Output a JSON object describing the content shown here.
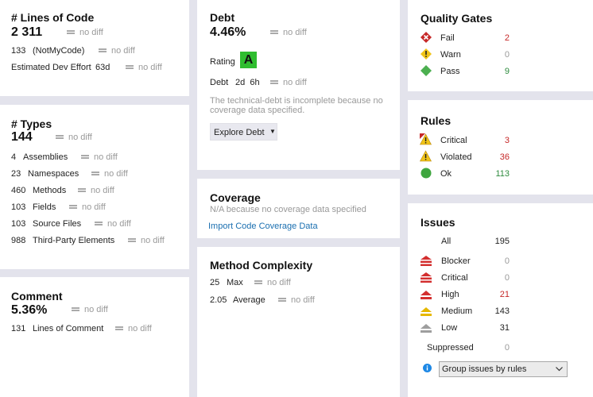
{
  "loc": {
    "title": "# Lines of Code",
    "value": "2 311",
    "value_diff": "no diff",
    "rows": [
      {
        "num": "133",
        "label": "(NotMyCode)",
        "diff": "no diff"
      },
      {
        "num": "",
        "label": "Estimated Dev Effort",
        "extra": "63d",
        "diff": "no diff"
      }
    ]
  },
  "types": {
    "title": "# Types",
    "value": "144",
    "value_diff": "no diff",
    "rows": [
      {
        "num": "4",
        "label": "Assemblies",
        "diff": "no diff"
      },
      {
        "num": "23",
        "label": "Namespaces",
        "diff": "no diff"
      },
      {
        "num": "460",
        "label": "Methods",
        "diff": "no diff"
      },
      {
        "num": "103",
        "label": "Fields",
        "diff": "no diff"
      },
      {
        "num": "103",
        "label": "Source Files",
        "diff": "no diff"
      },
      {
        "num": "988",
        "label": "Third-Party Elements",
        "diff": "no diff"
      }
    ]
  },
  "comment": {
    "title": "Comment",
    "value": "5.36%",
    "value_diff": "no diff",
    "rows": [
      {
        "num": "131",
        "label": "Lines of Comment",
        "diff": "no diff"
      }
    ]
  },
  "debt": {
    "title": "Debt",
    "value": "4.46%",
    "value_diff": "no diff",
    "rating_label": "Rating",
    "rating": "A",
    "debt_label": "Debt",
    "debt_value": "2d  6h",
    "debt_diff": "no diff",
    "note_line1": "The technical-debt is incomplete because no",
    "note_line2": "coverage data specified.",
    "explore_button": "Explore Debt"
  },
  "coverage": {
    "title": "Coverage",
    "note": "N/A because no coverage data specified",
    "import_link": "Import Code Coverage Data"
  },
  "complexity": {
    "title": "Method Complexity",
    "rows": [
      {
        "num": "25",
        "label": "Max",
        "diff": "no diff"
      },
      {
        "num": "2.05",
        "label": "Average",
        "diff": "no diff"
      }
    ]
  },
  "quality_gates": {
    "title": "Quality Gates",
    "rows": [
      {
        "icon": "fail-icon",
        "label": "Fail",
        "value": "2",
        "color": "#c62828"
      },
      {
        "icon": "warn-icon",
        "label": "Warn",
        "value": "0",
        "color": "#9a9a9a"
      },
      {
        "icon": "pass-icon",
        "label": "Pass",
        "value": "9",
        "color": "#2e8b3e"
      }
    ]
  },
  "rules": {
    "title": "Rules",
    "rows": [
      {
        "icon": "critical-rule-icon",
        "label": "Critical",
        "value": "3",
        "color": "#c62828"
      },
      {
        "icon": "violated-icon",
        "label": "Violated",
        "value": "36",
        "color": "#c62828"
      },
      {
        "icon": "ok-icon",
        "label": "Ok",
        "value": "113",
        "color": "#2e8b3e"
      }
    ]
  },
  "issues": {
    "title": "Issues",
    "all_label": "All",
    "all_value": "195",
    "rows": [
      {
        "icon": "blocker-icon",
        "label": "Blocker",
        "value": "0",
        "color": "#9a9a9a"
      },
      {
        "icon": "critical-icon",
        "label": "Critical",
        "value": "0",
        "color": "#9a9a9a"
      },
      {
        "icon": "high-icon",
        "label": "High",
        "value": "21",
        "color": "#c62828"
      },
      {
        "icon": "medium-icon",
        "label": "Medium",
        "value": "143",
        "color": "#222222"
      },
      {
        "icon": "low-icon",
        "label": "Low",
        "value": "31",
        "color": "#222222"
      }
    ],
    "suppressed_label": "Suppressed",
    "suppressed_value": "0",
    "group_select": "Group issues by rules"
  }
}
